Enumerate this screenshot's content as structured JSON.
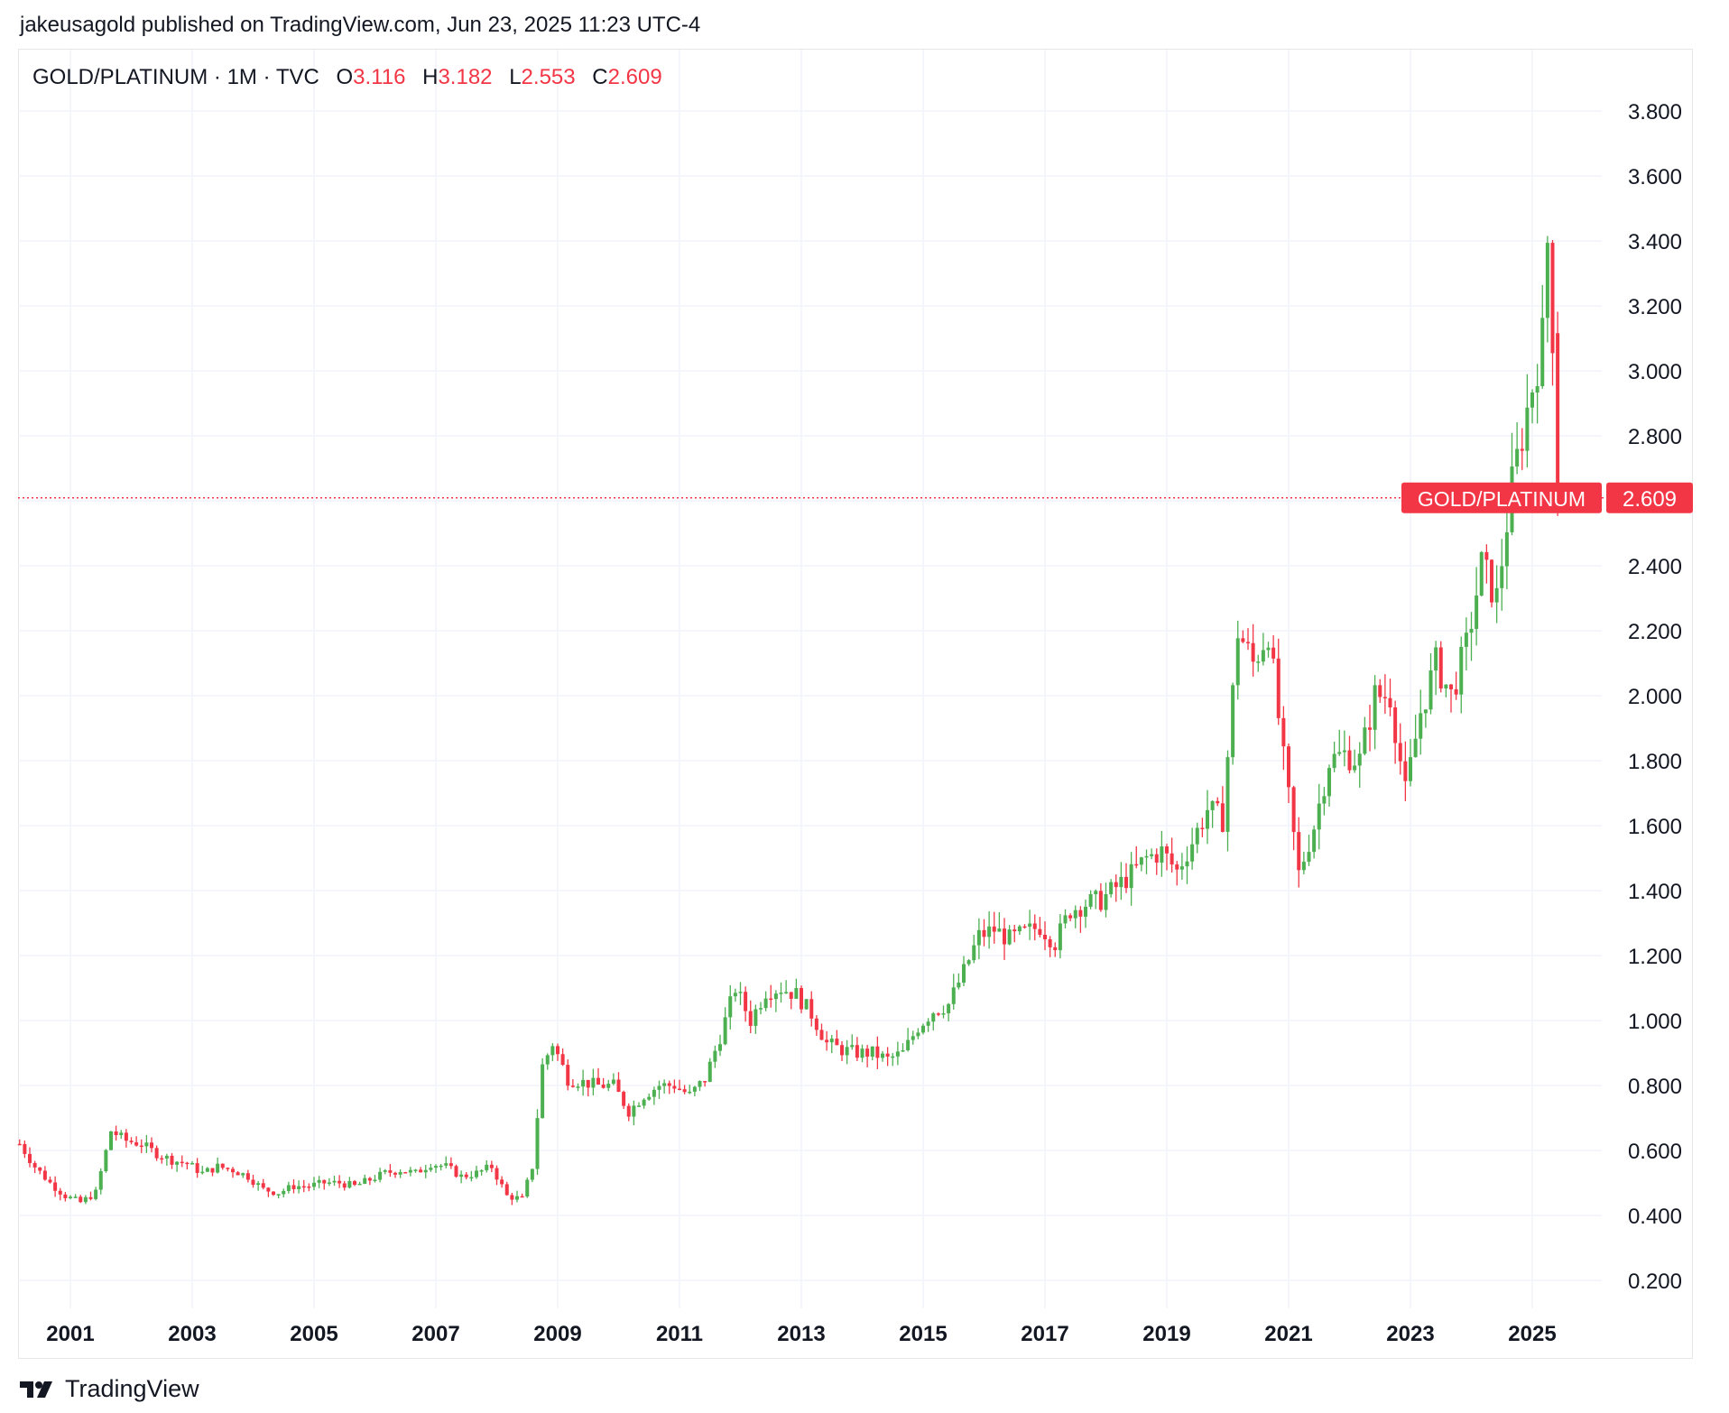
{
  "header": {
    "published_line": "jakeusagold published on TradingView.com, Jun 23, 2025 11:23 UTC-4"
  },
  "legend": {
    "symbol": "GOLD/PLATINUM · 1M · TVC",
    "o_label": "O",
    "o_value": "3.116",
    "h_label": "H",
    "h_value": "3.182",
    "l_label": "L",
    "l_value": "2.553",
    "c_label": "C",
    "c_value": "2.609"
  },
  "footer": {
    "brand": "TradingView",
    "logo_icon": "tradingview-logo-icon"
  },
  "colors": {
    "up": "#4caf50",
    "down": "#f23645",
    "grid": "#f0f3fa",
    "axis_text": "#131722"
  },
  "chart_data": {
    "type": "candlestick",
    "symbol": "GOLD/PLATINUM",
    "interval": "1M",
    "source": "TVC",
    "price_label": "GOLD/PLATINUM",
    "last_price": "2.609",
    "y_ticks": [
      "0.200",
      "0.400",
      "0.600",
      "0.800",
      "1.000",
      "1.200",
      "1.400",
      "1.600",
      "1.800",
      "2.000",
      "2.200",
      "2.400",
      "2.600",
      "2.800",
      "3.000",
      "3.200",
      "3.400",
      "3.600",
      "3.800"
    ],
    "x_ticks": [
      "2001",
      "2003",
      "2005",
      "2007",
      "2009",
      "2011",
      "2013",
      "2015",
      "2017",
      "2019",
      "2021",
      "2023",
      "2025"
    ],
    "ylim": [
      0.1,
      3.95
    ],
    "grid": true,
    "close_path": [
      [
        "2000-03",
        0.62
      ],
      [
        "2000-06",
        0.55
      ],
      [
        "2000-09",
        0.5
      ],
      [
        "2000-12",
        0.46
      ],
      [
        "2001-03",
        0.44
      ],
      [
        "2001-06",
        0.47
      ],
      [
        "2001-09",
        0.66
      ],
      [
        "2001-12",
        0.63
      ],
      [
        "2002-03",
        0.62
      ],
      [
        "2002-06",
        0.59
      ],
      [
        "2002-09",
        0.57
      ],
      [
        "2002-12",
        0.56
      ],
      [
        "2003-03",
        0.53
      ],
      [
        "2003-06",
        0.55
      ],
      [
        "2003-09",
        0.54
      ],
      [
        "2003-12",
        0.52
      ],
      [
        "2004-03",
        0.48
      ],
      [
        "2004-06",
        0.47
      ],
      [
        "2004-09",
        0.49
      ],
      [
        "2004-12",
        0.49
      ],
      [
        "2005-03",
        0.5
      ],
      [
        "2005-06",
        0.5
      ],
      [
        "2005-09",
        0.49
      ],
      [
        "2005-12",
        0.51
      ],
      [
        "2006-03",
        0.53
      ],
      [
        "2006-06",
        0.54
      ],
      [
        "2006-09",
        0.53
      ],
      [
        "2006-12",
        0.56
      ],
      [
        "2007-03",
        0.55
      ],
      [
        "2007-06",
        0.52
      ],
      [
        "2007-09",
        0.53
      ],
      [
        "2007-12",
        0.55
      ],
      [
        "2008-03",
        0.46
      ],
      [
        "2008-06",
        0.45
      ],
      [
        "2008-08",
        0.55
      ],
      [
        "2008-10",
        0.86
      ],
      [
        "2008-12",
        0.93
      ],
      [
        "2009-03",
        0.82
      ],
      [
        "2009-06",
        0.81
      ],
      [
        "2009-09",
        0.8
      ],
      [
        "2009-12",
        0.8
      ],
      [
        "2010-03",
        0.72
      ],
      [
        "2010-06",
        0.77
      ],
      [
        "2010-09",
        0.8
      ],
      [
        "2010-12",
        0.8
      ],
      [
        "2011-03",
        0.77
      ],
      [
        "2011-06",
        0.82
      ],
      [
        "2011-09",
        0.95
      ],
      [
        "2011-12",
        1.1
      ],
      [
        "2012-03",
        1.0
      ],
      [
        "2012-06",
        1.09
      ],
      [
        "2012-09",
        1.1
      ],
      [
        "2012-12",
        1.08
      ],
      [
        "2013-03",
        1.02
      ],
      [
        "2013-06",
        0.93
      ],
      [
        "2013-09",
        0.91
      ],
      [
        "2013-12",
        0.9
      ],
      [
        "2014-03",
        0.9
      ],
      [
        "2014-06",
        0.88
      ],
      [
        "2014-09",
        0.9
      ],
      [
        "2014-12",
        0.98
      ],
      [
        "2015-03",
        1.03
      ],
      [
        "2015-06",
        1.05
      ],
      [
        "2015-09",
        1.15
      ],
      [
        "2015-12",
        1.26
      ],
      [
        "2016-03",
        1.28
      ],
      [
        "2016-06",
        1.25
      ],
      [
        "2016-09",
        1.27
      ],
      [
        "2016-12",
        1.29
      ],
      [
        "2017-03",
        1.24
      ],
      [
        "2017-06",
        1.34
      ],
      [
        "2017-09",
        1.36
      ],
      [
        "2017-12",
        1.37
      ],
      [
        "2018-03",
        1.41
      ],
      [
        "2018-06",
        1.45
      ],
      [
        "2018-09",
        1.5
      ],
      [
        "2018-12",
        1.52
      ],
      [
        "2019-03",
        1.46
      ],
      [
        "2019-06",
        1.55
      ],
      [
        "2019-09",
        1.65
      ],
      [
        "2019-12",
        1.62
      ],
      [
        "2020-03",
        2.2
      ],
      [
        "2020-06",
        2.1
      ],
      [
        "2020-09",
        2.2
      ],
      [
        "2020-12",
        1.8
      ],
      [
        "2021-03",
        1.45
      ],
      [
        "2021-06",
        1.6
      ],
      [
        "2021-09",
        1.8
      ],
      [
        "2021-12",
        1.82
      ],
      [
        "2022-03",
        1.8
      ],
      [
        "2022-06",
        2.0
      ],
      [
        "2022-09",
        2.0
      ],
      [
        "2022-12",
        1.7
      ],
      [
        "2023-03",
        1.95
      ],
      [
        "2023-06",
        2.1
      ],
      [
        "2023-09",
        2.0
      ],
      [
        "2023-12",
        2.15
      ],
      [
        "2024-03",
        2.4
      ],
      [
        "2024-06",
        2.3
      ],
      [
        "2024-09",
        2.65
      ],
      [
        "2024-12",
        2.88
      ],
      [
        "2025-03",
        3.1
      ],
      [
        "2025-04",
        3.4
      ],
      [
        "2025-05",
        3.116
      ],
      [
        "2025-06",
        2.609
      ]
    ]
  }
}
